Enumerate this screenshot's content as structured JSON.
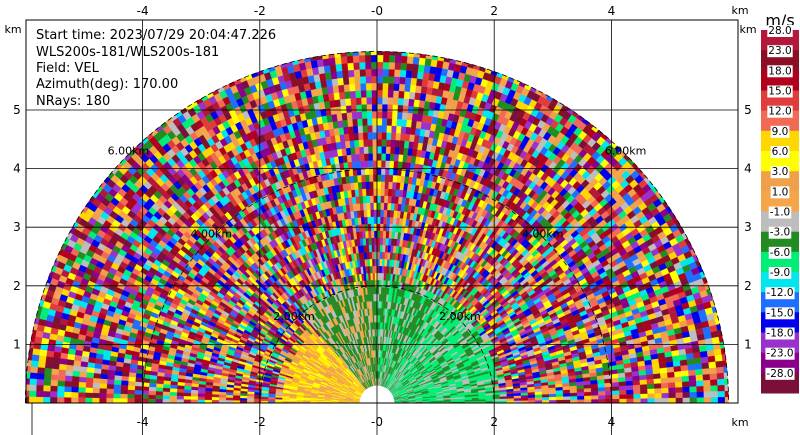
{
  "info": {
    "start_time": "Start time: 2023/07/29 20:04:47.226",
    "instrument": "WLS200s-181/WLS200s-181",
    "field": "Field: VEL",
    "azimuth": "Azimuth(deg): 170.00",
    "nrays": "NRays: 180"
  },
  "colorbar": {
    "unit": "m/s",
    "bins": [
      {
        "label": "28.0",
        "color": "#b3173a"
      },
      {
        "label": "23.0",
        "color": "#8b0e24"
      },
      {
        "label": "18.0",
        "color": "#b0001e"
      },
      {
        "label": "15.0",
        "color": "#e03c3c"
      },
      {
        "label": "12.0",
        "color": "#f26a55"
      },
      {
        "label": "9.0",
        "color": "#ffd700"
      },
      {
        "label": "6.0",
        "color": "#ffff00"
      },
      {
        "label": "3.0",
        "color": "#f0a04b"
      },
      {
        "label": "1.0",
        "color": "#f5a64a"
      },
      {
        "label": "-1.0",
        "color": "#bdbdbd"
      },
      {
        "label": "-3.0",
        "color": "#228b22"
      },
      {
        "label": "-6.0",
        "color": "#00ee76"
      },
      {
        "label": "-9.0",
        "color": "#00e5ee"
      },
      {
        "label": "-12.0",
        "color": "#1e6fff"
      },
      {
        "label": "-15.0",
        "color": "#0000ee"
      },
      {
        "label": "-18.0",
        "color": "#9932cc"
      },
      {
        "label": "-23.0",
        "color": "#8b008b"
      },
      {
        "label": "-28.0",
        "color": "#7a0f3a"
      }
    ]
  },
  "chart_data": {
    "type": "heatmap",
    "description_free": true,
    "x_unit": "km",
    "y_unit": "km",
    "xlim": [
      -6,
      6
    ],
    "ylim": [
      0,
      6
    ],
    "x_ticks": [
      -4,
      -2,
      0,
      2,
      4
    ],
    "y_ticks": [
      1,
      2,
      3,
      4,
      5
    ],
    "x_tick_labels": [
      "-4",
      "-2",
      "-0",
      "2",
      "4"
    ],
    "y_tick_labels": [
      "1",
      "2",
      "3",
      "4",
      "5"
    ],
    "range_rings_km": [
      2,
      4,
      6
    ],
    "range_ring_labels": [
      "2.00km",
      "4.00km",
      "6.00km"
    ],
    "max_range_km": 6,
    "grid": true,
    "sectors": [
      {
        "from_deg": 0,
        "to_deg": 60,
        "max_range_km": 2.1,
        "colors": [
          "#00ee76",
          "#00ee76",
          "#bdbdbd",
          "#228b22"
        ]
      },
      {
        "from_deg": 60,
        "to_deg": 90,
        "max_range_km": 2.1,
        "colors": [
          "#228b22",
          "#bdbdbd",
          "#228b22",
          "#00ee76"
        ]
      },
      {
        "from_deg": 90,
        "to_deg": 130,
        "max_range_km": 2.0,
        "colors": [
          "#228b22",
          "#bdbdbd",
          "#f5a64a",
          "#228b22"
        ]
      },
      {
        "from_deg": 130,
        "to_deg": 180,
        "max_range_km": 1.6,
        "colors": [
          "#f5a64a",
          "#ffd700",
          "#ffff00",
          "#f0a04b"
        ]
      }
    ]
  }
}
